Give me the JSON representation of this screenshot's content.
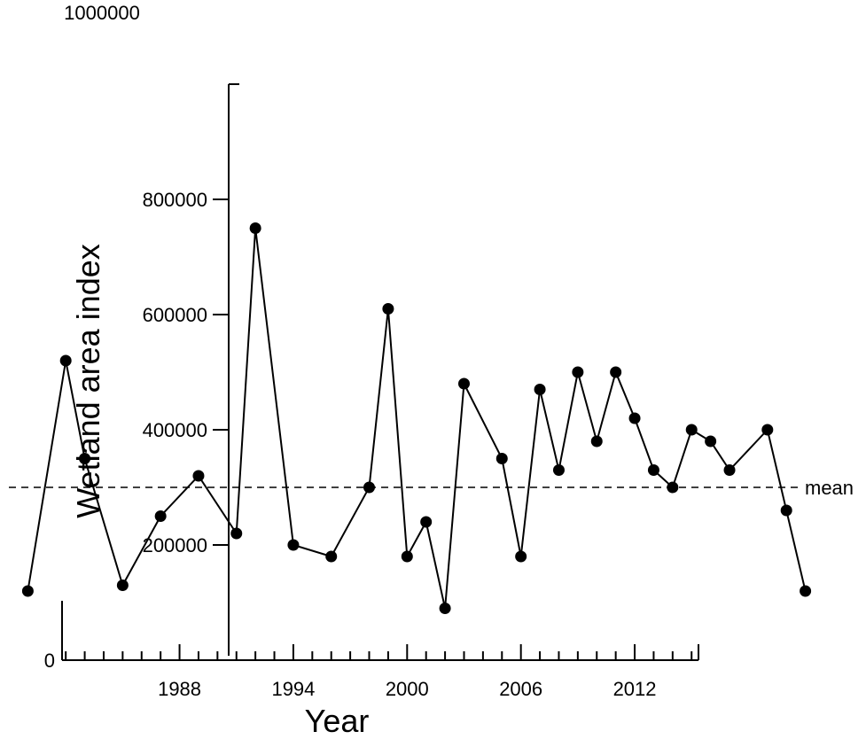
{
  "chart_data": {
    "type": "line",
    "title": "",
    "xlabel": "Year",
    "ylabel": "Wetland area index",
    "ylim": [
      0,
      1000000
    ],
    "yticks": [
      0,
      200000,
      400000,
      600000,
      800000
    ],
    "ytick_labels": [
      "0",
      "200000",
      "400000",
      "600000",
      "800000"
    ],
    "top_label": "1000000",
    "xlim": [
      1979,
      2022
    ],
    "xticks": [
      1988,
      1994,
      2000,
      2006,
      2012
    ],
    "mean_label": "mean",
    "mean_value": 300000,
    "grid": false,
    "series": [
      {
        "values": [
          {
            "x": 1980,
            "y": 120000
          },
          {
            "x": 1982,
            "y": 520000
          },
          {
            "x": 1983,
            "y": 350000
          },
          {
            "x": 1985,
            "y": 130000
          },
          {
            "x": 1987,
            "y": 250000
          },
          {
            "x": 1989,
            "y": 320000
          },
          {
            "x": 1991,
            "y": 220000
          },
          {
            "x": 1992,
            "y": 750000
          },
          {
            "x": 1994,
            "y": 200000
          },
          {
            "x": 1996,
            "y": 180000
          },
          {
            "x": 1998,
            "y": 300000
          },
          {
            "x": 1999,
            "y": 610000
          },
          {
            "x": 2000,
            "y": 180000
          },
          {
            "x": 2001,
            "y": 240000
          },
          {
            "x": 2002,
            "y": 90000
          },
          {
            "x": 2003,
            "y": 480000
          },
          {
            "x": 2005,
            "y": 350000
          },
          {
            "x": 2006,
            "y": 180000
          },
          {
            "x": 2007,
            "y": 470000
          },
          {
            "x": 2008,
            "y": 330000
          },
          {
            "x": 2009,
            "y": 500000
          },
          {
            "x": 2010,
            "y": 380000
          },
          {
            "x": 2011,
            "y": 500000
          },
          {
            "x": 2012,
            "y": 420000
          },
          {
            "x": 2013,
            "y": 330000
          },
          {
            "x": 2014,
            "y": 300000
          },
          {
            "x": 2015,
            "y": 400000
          },
          {
            "x": 2016,
            "y": 380000
          },
          {
            "x": 2017,
            "y": 330000
          },
          {
            "x": 2019,
            "y": 400000
          },
          {
            "x": 2020,
            "y": 260000
          },
          {
            "x": 2021,
            "y": 120000
          }
        ]
      }
    ]
  }
}
